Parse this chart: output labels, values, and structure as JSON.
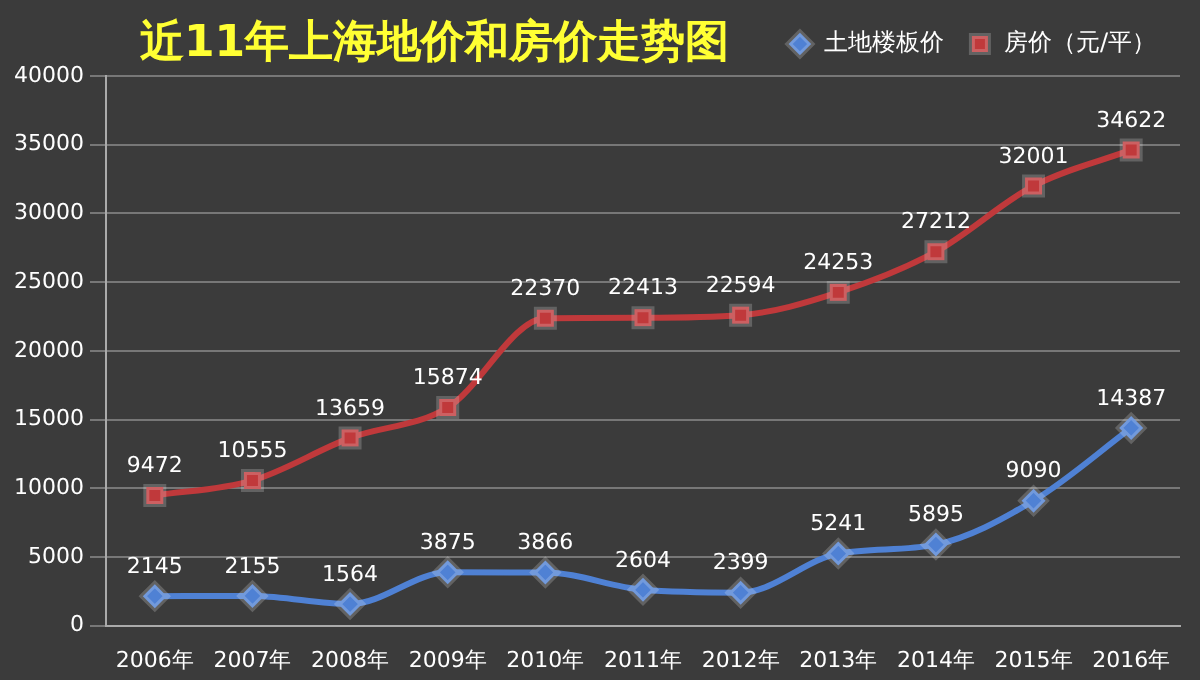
{
  "chart_data": {
    "type": "line",
    "title": "近11年上海地价和房价走势图",
    "categories": [
      "2006年",
      "2007年",
      "2008年",
      "2009年",
      "2010年",
      "2011年",
      "2012年",
      "2013年",
      "2014年",
      "2015年",
      "2016年"
    ],
    "series": [
      {
        "name": "土地楼板价",
        "color": "#4f81d4",
        "marker": "diamond",
        "values": [
          2145,
          2155,
          1564,
          3875,
          3866,
          2604,
          2399,
          5241,
          5895,
          9090,
          14387
        ]
      },
      {
        "name": "房价（元/平）",
        "color": "#c0393b",
        "marker": "square",
        "values": [
          9472,
          10555,
          13659,
          15874,
          22370,
          22413,
          22594,
          24253,
          27212,
          32001,
          34622
        ]
      }
    ],
    "ylim": [
      0,
      40000
    ],
    "yticks": [
      0,
      5000,
      10000,
      15000,
      20000,
      25000,
      30000,
      35000,
      40000
    ],
    "grid": "y",
    "legend": "top right",
    "data_labels": true
  }
}
